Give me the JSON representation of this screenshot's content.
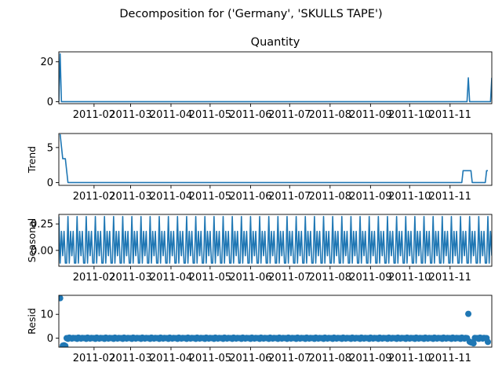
{
  "figure": {
    "title": "Decomposition for ('Germany', 'SKULLS TAPE')"
  },
  "chart_data": [
    {
      "type": "line",
      "title": "Quantity",
      "xlabel": "",
      "ylabel": "",
      "xlim": [
        "2011-01-05",
        "2011-12-03"
      ],
      "ylim": [
        -1,
        25
      ],
      "yticks": [
        0,
        20
      ],
      "xticks": [
        "2011-02-01",
        "2011-03-01",
        "2011-04-01",
        "2011-05-01",
        "2011-06-01",
        "2011-07-01",
        "2011-08-01",
        "2011-09-01",
        "2011-10-01",
        "2011-11-01"
      ],
      "xtick_labels": [
        "2011-02",
        "2011-03",
        "2011-04",
        "2011-05",
        "2011-06",
        "2011-07",
        "2011-08",
        "2011-09",
        "2011-10",
        "2011-11"
      ],
      "grid": false,
      "series": [
        {
          "x": [
            "2011-01-05",
            "2011-01-06",
            "2011-01-07",
            "2011-01-08",
            "2011-11-14",
            "2011-11-15",
            "2011-11-16",
            "2011-11-17",
            "2011-12-02",
            "2011-12-03"
          ],
          "values": [
            0,
            24,
            0,
            0,
            0,
            12,
            0,
            0,
            0,
            12
          ]
        }
      ]
    },
    {
      "type": "line",
      "title": "",
      "xlabel": "",
      "ylabel": "Trend",
      "xlim": [
        "2011-01-05",
        "2011-12-03"
      ],
      "ylim": [
        -0.4,
        7
      ],
      "yticks": [
        0,
        5
      ],
      "xticks": [
        "2011-02-01",
        "2011-03-01",
        "2011-04-01",
        "2011-05-01",
        "2011-06-01",
        "2011-07-01",
        "2011-08-01",
        "2011-09-01",
        "2011-10-01",
        "2011-11-01"
      ],
      "xtick_labels": [
        "2011-02",
        "2011-03",
        "2011-04",
        "2011-05",
        "2011-06",
        "2011-07",
        "2011-08",
        "2011-09",
        "2011-10",
        "2011-11"
      ],
      "grid": false,
      "series": [
        {
          "x": [
            "2011-01-06",
            "2011-01-08",
            "2011-01-09",
            "2011-01-10",
            "2011-01-12",
            "2011-01-13",
            "2011-11-10",
            "2011-11-11",
            "2011-11-17",
            "2011-11-18",
            "2011-11-27",
            "2011-11-28",
            "2011-11-29",
            "2011-11-30"
          ],
          "values": [
            6.9,
            3.4,
            3.4,
            3.4,
            0,
            0,
            0,
            1.7,
            1.7,
            0,
            0,
            0,
            1.7,
            1.7
          ]
        }
      ]
    },
    {
      "type": "line",
      "title": "",
      "xlabel": "",
      "ylabel": "Seasonal",
      "xlim": [
        "2011-01-05",
        "2011-12-03"
      ],
      "ylim": [
        -0.15,
        0.34
      ],
      "yticks": [
        0.25,
        0.0
      ],
      "ytick_labels": [
        "0.25",
        "0.00"
      ],
      "xticks": [
        "2011-02-01",
        "2011-03-01",
        "2011-04-01",
        "2011-05-01",
        "2011-06-01",
        "2011-07-01",
        "2011-08-01",
        "2011-09-01",
        "2011-10-01",
        "2011-11-01"
      ],
      "xtick_labels": [
        "2011-02",
        "2011-03",
        "2011-04",
        "2011-05",
        "2011-06",
        "2011-07",
        "2011-08",
        "2011-09",
        "2011-10",
        "2011-11"
      ],
      "grid": false,
      "period_days": 7,
      "weekly_pattern": [
        0.32,
        -0.12,
        0.18,
        -0.05,
        0.18,
        -0.12,
        -0.12
      ],
      "pattern_start": "2011-01-05",
      "series": []
    },
    {
      "type": "scatter",
      "title": "",
      "xlabel": "",
      "ylabel": "Resid",
      "xlim": [
        "2011-01-05",
        "2011-12-03"
      ],
      "ylim": [
        -3.8,
        18
      ],
      "yticks": [
        0,
        10
      ],
      "xticks": [
        "2011-02-01",
        "2011-03-01",
        "2011-04-01",
        "2011-05-01",
        "2011-06-01",
        "2011-07-01",
        "2011-08-01",
        "2011-09-01",
        "2011-10-01",
        "2011-11-01"
      ],
      "xtick_labels": [
        "2011-02",
        "2011-03",
        "2011-04",
        "2011-05",
        "2011-06",
        "2011-07",
        "2011-08",
        "2011-09",
        "2011-10",
        "2011-11"
      ],
      "grid": false,
      "series": [
        {
          "x": [
            "2011-01-06",
            "2011-01-08",
            "2011-01-09",
            "2011-01-10",
            "2011-11-15",
            "2011-11-16",
            "2011-11-17",
            "2011-11-18",
            "2011-11-19",
            "2011-11-30"
          ],
          "values": [
            16.8,
            -3.2,
            -3.0,
            -3.3,
            10.2,
            -1.5,
            -1.8,
            -1.9,
            -2.2,
            -1.6
          ]
        }
      ],
      "baseline_dense": {
        "from": "2011-01-11",
        "to": "2011-11-29",
        "pattern": [
          0.0,
          -0.3,
          0.2,
          0.0,
          -0.2,
          0.1,
          0.0
        ],
        "exclude": [
          "2011-11-15",
          "2011-11-16",
          "2011-11-17",
          "2011-11-18",
          "2011-11-19"
        ]
      }
    }
  ]
}
